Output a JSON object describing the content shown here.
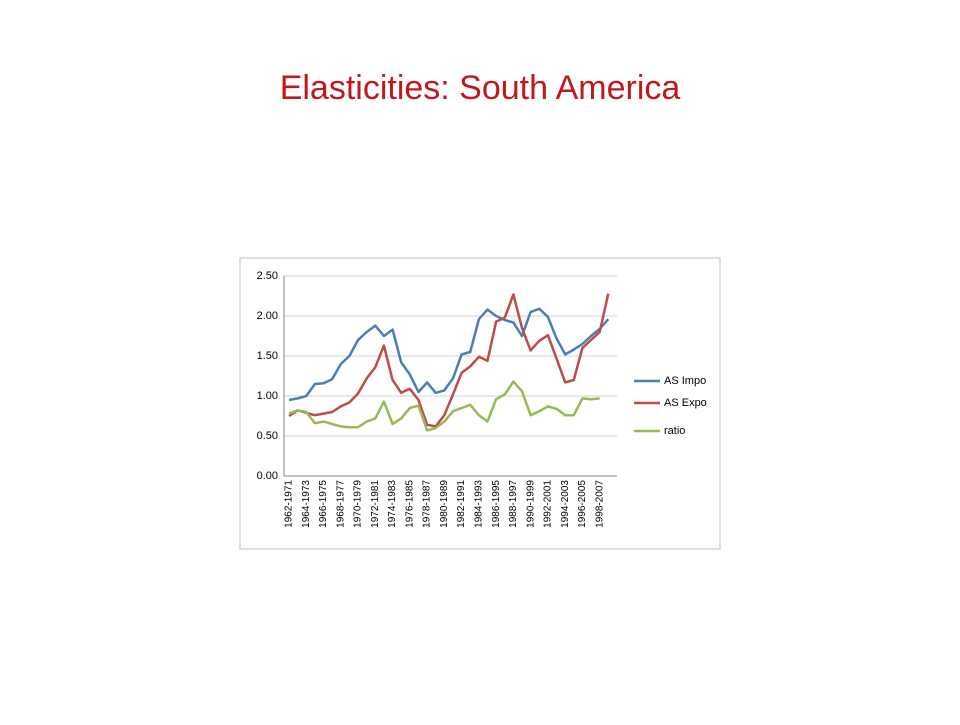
{
  "title": "Elasticities: South America",
  "chart_data": {
    "type": "line",
    "categories": [
      "1962-1971",
      null,
      "1964-1973",
      null,
      "1966-1975",
      null,
      "1968-1977",
      null,
      "1970-1979",
      null,
      "1972-1981",
      null,
      "1974-1983",
      null,
      "1976-1985",
      null,
      "1978-1987",
      null,
      "1980-1989",
      null,
      "1982-1991",
      null,
      "1984-1993",
      null,
      "1986-1995",
      null,
      "1988-1997",
      null,
      "1990-1999",
      null,
      "1992-2001",
      null,
      "1994-2003",
      null,
      "1996-2005",
      null,
      "1998-2007",
      null
    ],
    "series": [
      {
        "name": "AS Impo",
        "color": "#4a7ebb",
        "values": [
          0.95,
          0.97,
          1.0,
          1.15,
          1.16,
          1.21,
          1.4,
          1.5,
          1.7,
          1.8,
          1.88,
          1.75,
          1.83,
          1.42,
          1.27,
          1.05,
          1.17,
          1.04,
          1.07,
          1.22,
          1.52,
          1.55,
          1.96,
          2.08,
          2.0,
          1.95,
          1.92,
          1.75,
          2.05,
          2.09,
          1.99,
          1.72,
          1.52,
          1.58,
          1.65,
          1.75,
          1.84,
          1.96
        ]
      },
      {
        "name": "AS Expo",
        "color": "#be4b48",
        "values": [
          0.75,
          0.82,
          0.79,
          0.76,
          0.78,
          0.8,
          0.87,
          0.92,
          1.03,
          1.22,
          1.36,
          1.63,
          1.2,
          1.04,
          1.09,
          0.95,
          0.64,
          0.62,
          0.76,
          1.02,
          1.29,
          1.37,
          1.49,
          1.44,
          1.93,
          1.98,
          2.27,
          1.85,
          1.57,
          1.69,
          1.76,
          1.47,
          1.17,
          1.2,
          1.6,
          1.7,
          1.8,
          2.28
        ]
      },
      {
        "name": "ratio",
        "color": "#98b954",
        "values": [
          0.78,
          0.82,
          0.8,
          0.66,
          0.68,
          0.65,
          0.62,
          0.61,
          0.61,
          0.68,
          0.72,
          0.93,
          0.65,
          0.72,
          0.85,
          0.88,
          0.57,
          0.6,
          0.68,
          0.81,
          0.85,
          0.89,
          0.76,
          0.68,
          0.96,
          1.02,
          1.18,
          1.06,
          0.76,
          0.81,
          0.87,
          0.84,
          0.76,
          0.76,
          0.97,
          0.96,
          0.97,
          null
        ]
      }
    ],
    "ylim": [
      0,
      2.5
    ],
    "yticks": [
      {
        "value": 0,
        "label": "0.00"
      },
      {
        "value": 0.5,
        "label": "0.50"
      },
      {
        "value": 1,
        "label": "1.00"
      },
      {
        "value": 1.5,
        "label": "1.50"
      },
      {
        "value": 2,
        "label": "2.00"
      },
      {
        "value": 2.5,
        "label": "2.50"
      }
    ],
    "grid": true,
    "legend": "right"
  }
}
